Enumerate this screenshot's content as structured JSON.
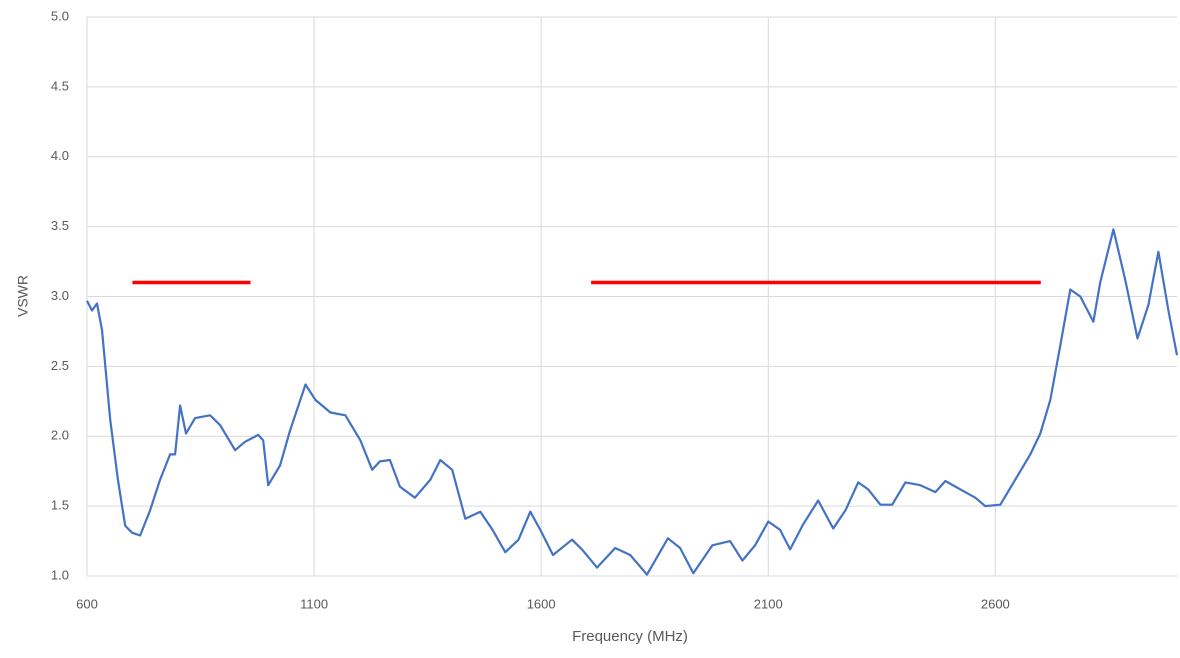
{
  "chart_data": {
    "type": "line",
    "x_label": "Frequency (MHz)",
    "y_label": "VSWR",
    "xlim": [
      600,
      3000
    ],
    "xticks": [
      600,
      1100,
      1600,
      2100,
      2600
    ],
    "ylim": [
      1,
      5
    ],
    "yticks": [
      {
        "value": 1,
        "label": "1.0"
      },
      1.5,
      {
        "value": 2,
        "label": "2.0"
      },
      2.5,
      {
        "value": 3,
        "label": "3.0"
      },
      3.5,
      {
        "value": 4,
        "label": "4.0"
      },
      4.5,
      {
        "value": 5,
        "label": "5.0"
      }
    ],
    "grid": true,
    "series": [
      {
        "color": "#4472c4",
        "x": [
          600,
          611,
          622,
          633,
          651,
          668,
          684,
          699,
          717,
          739,
          761,
          783,
          794,
          805,
          818,
          838,
          871,
          893,
          926,
          948,
          977,
          988,
          999,
          1025,
          1047,
          1081,
          1103,
          1136,
          1169,
          1202,
          1228,
          1245,
          1267,
          1289,
          1322,
          1356,
          1378,
          1404,
          1433,
          1466,
          1493,
          1521,
          1550,
          1576,
          1598,
          1626,
          1668,
          1690,
          1723,
          1763,
          1796,
          1833,
          1879,
          1906,
          1935,
          1977,
          2016,
          2043,
          2071,
          2100,
          2126,
          2148,
          2177,
          2210,
          2243,
          2270,
          2298,
          2320,
          2347,
          2373,
          2402,
          2435,
          2468,
          2490,
          2523,
          2556,
          2578,
          2611,
          2644,
          2677,
          2699,
          2721,
          2743,
          2765,
          2787,
          2816,
          2831,
          2860,
          2886,
          2913,
          2937,
          2959,
          2981,
          3000
        ],
        "values": [
          2.97,
          2.9,
          2.95,
          2.76,
          2.12,
          1.69,
          1.36,
          1.31,
          1.29,
          1.47,
          1.69,
          1.87,
          1.87,
          2.22,
          2.02,
          2.13,
          2.15,
          2.08,
          1.9,
          1.96,
          2.01,
          1.97,
          1.65,
          1.79,
          2.04,
          2.37,
          2.26,
          2.17,
          2.15,
          1.97,
          1.76,
          1.82,
          1.83,
          1.64,
          1.56,
          1.69,
          1.83,
          1.76,
          1.41,
          1.46,
          1.33,
          1.17,
          1.26,
          1.46,
          1.33,
          1.15,
          1.26,
          1.19,
          1.06,
          1.2,
          1.15,
          1.01,
          1.27,
          1.2,
          1.02,
          1.22,
          1.25,
          1.11,
          1.22,
          1.39,
          1.33,
          1.19,
          1.37,
          1.54,
          1.34,
          1.47,
          1.67,
          1.62,
          1.51,
          1.51,
          1.67,
          1.65,
          1.6,
          1.68,
          1.62,
          1.56,
          1.5,
          1.51,
          1.69,
          1.87,
          2.02,
          2.26,
          2.65,
          3.05,
          3.0,
          2.82,
          3.1,
          3.48,
          3.12,
          2.7,
          2.94,
          3.32,
          2.9,
          2.58
        ]
      },
      {
        "color": "#ff0000",
        "x": [
          700,
          960
        ],
        "values": [
          3.1,
          3.1
        ]
      },
      {
        "color": "#ff0000",
        "x": [
          1710,
          2700
        ],
        "values": [
          3.1,
          3.1
        ]
      }
    ]
  }
}
